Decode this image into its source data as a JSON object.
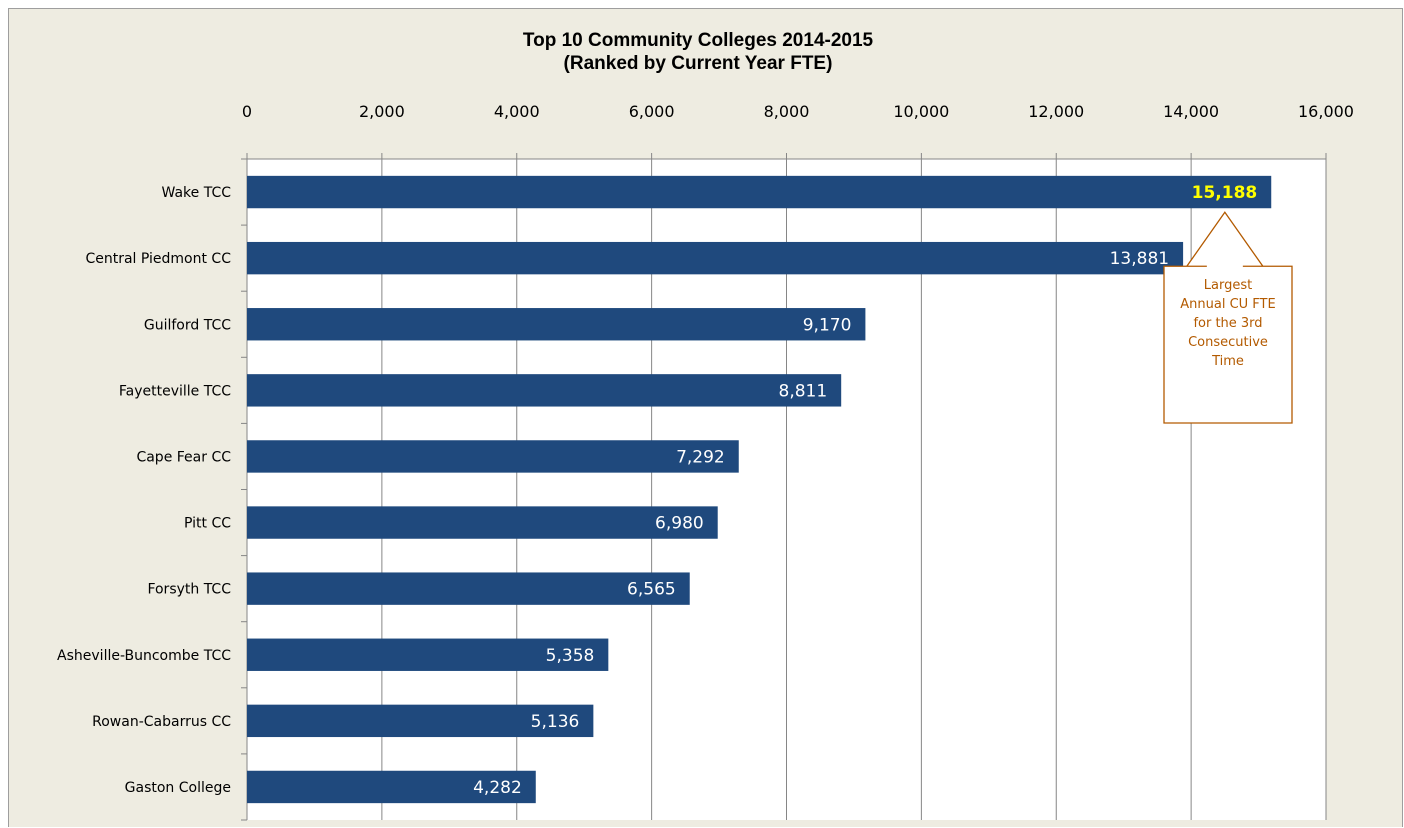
{
  "chart_data": {
    "type": "bar",
    "orientation": "horizontal",
    "title": "Top 10 Community Colleges 2014-2015",
    "subtitle": "(Ranked by Current Year FTE)",
    "categories": [
      "Wake TCC",
      "Central Piedmont CC",
      "Guilford TCC",
      "Fayetteville TCC",
      "Cape Fear CC",
      "Pitt CC",
      "Forsyth TCC",
      "Asheville-Buncombe TCC",
      "Rowan-Cabarrus CC",
      "Gaston College"
    ],
    "values": [
      15188,
      13881,
      9170,
      8811,
      7292,
      6980,
      6565,
      5358,
      5136,
      4282
    ],
    "value_labels": [
      "15,188",
      "13,881",
      "9,170",
      "8,811",
      "7,292",
      "6,980",
      "6,565",
      "5,358",
      "5,136",
      "4,282"
    ],
    "xlim": [
      0,
      16000
    ],
    "x_ticks": [
      0,
      2000,
      4000,
      6000,
      8000,
      10000,
      12000,
      14000,
      16000
    ],
    "x_tick_labels": [
      "0",
      "2,000",
      "4,000",
      "6,000",
      "8,000",
      "10,000",
      "12,000",
      "14,000",
      "16,000"
    ],
    "x_axis_position": "top",
    "grid": true,
    "highlight_index": 0,
    "annotation": {
      "text_lines": [
        "Largest",
        "Annual CU FTE",
        "for the 3rd",
        "Consecutive",
        "Time"
      ],
      "points_to": "Wake TCC"
    },
    "colors": {
      "bar": "#1f497d",
      "background": "#eeece1",
      "plot_background": "#ffffff",
      "highlight_label": "#ffff00",
      "annotation": "#b35a00"
    }
  }
}
